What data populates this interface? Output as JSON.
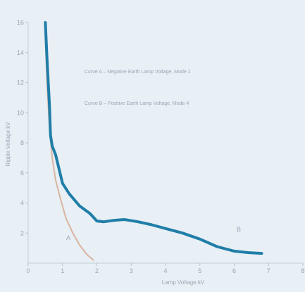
{
  "chart_data": {
    "type": "line",
    "title": "",
    "xlabel": "Lamp Voltage kV",
    "ylabel": "Ripple Voltage kV",
    "xlim": [
      0,
      8
    ],
    "ylim": [
      0,
      16
    ],
    "x_ticks": [
      "0",
      "1",
      "2",
      "3",
      "4",
      "5",
      "6",
      "7",
      "8"
    ],
    "y_ticks": [
      "2",
      "4",
      "6",
      "8",
      "10",
      "12",
      "14",
      "16"
    ],
    "grid": false,
    "legend": "none",
    "annotations": [
      "Curve A – Negative Earth Lamp Voltage, Mode 2",
      "Curve B – Positive Earth Lamp Voltage, Mode 4"
    ],
    "series": [
      {
        "name": "B",
        "color": "#1f7ea8",
        "x": [
          0.5,
          0.55,
          0.62,
          0.65,
          0.7,
          0.8,
          1.0,
          1.2,
          1.5,
          1.8,
          2.0,
          2.2,
          2.5,
          2.8,
          3.2,
          3.6,
          4.0,
          4.5,
          5.0,
          5.5,
          6.0,
          6.4,
          6.8
        ],
        "y": [
          16,
          13.5,
          10.5,
          8.5,
          7.8,
          7.2,
          5.3,
          4.6,
          3.8,
          3.3,
          2.8,
          2.75,
          2.85,
          2.9,
          2.75,
          2.55,
          2.3,
          2.0,
          1.6,
          1.1,
          0.8,
          0.7,
          0.65
        ]
      },
      {
        "name": "A",
        "color": "#d8b4a0",
        "x": [
          0.5,
          0.55,
          0.62,
          0.7,
          0.8,
          0.95,
          1.1,
          1.3,
          1.5,
          1.7,
          1.9
        ],
        "y": [
          15.0,
          12.0,
          9.0,
          7.0,
          5.5,
          4.2,
          3.0,
          2.0,
          1.2,
          0.6,
          0.2
        ]
      }
    ]
  }
}
